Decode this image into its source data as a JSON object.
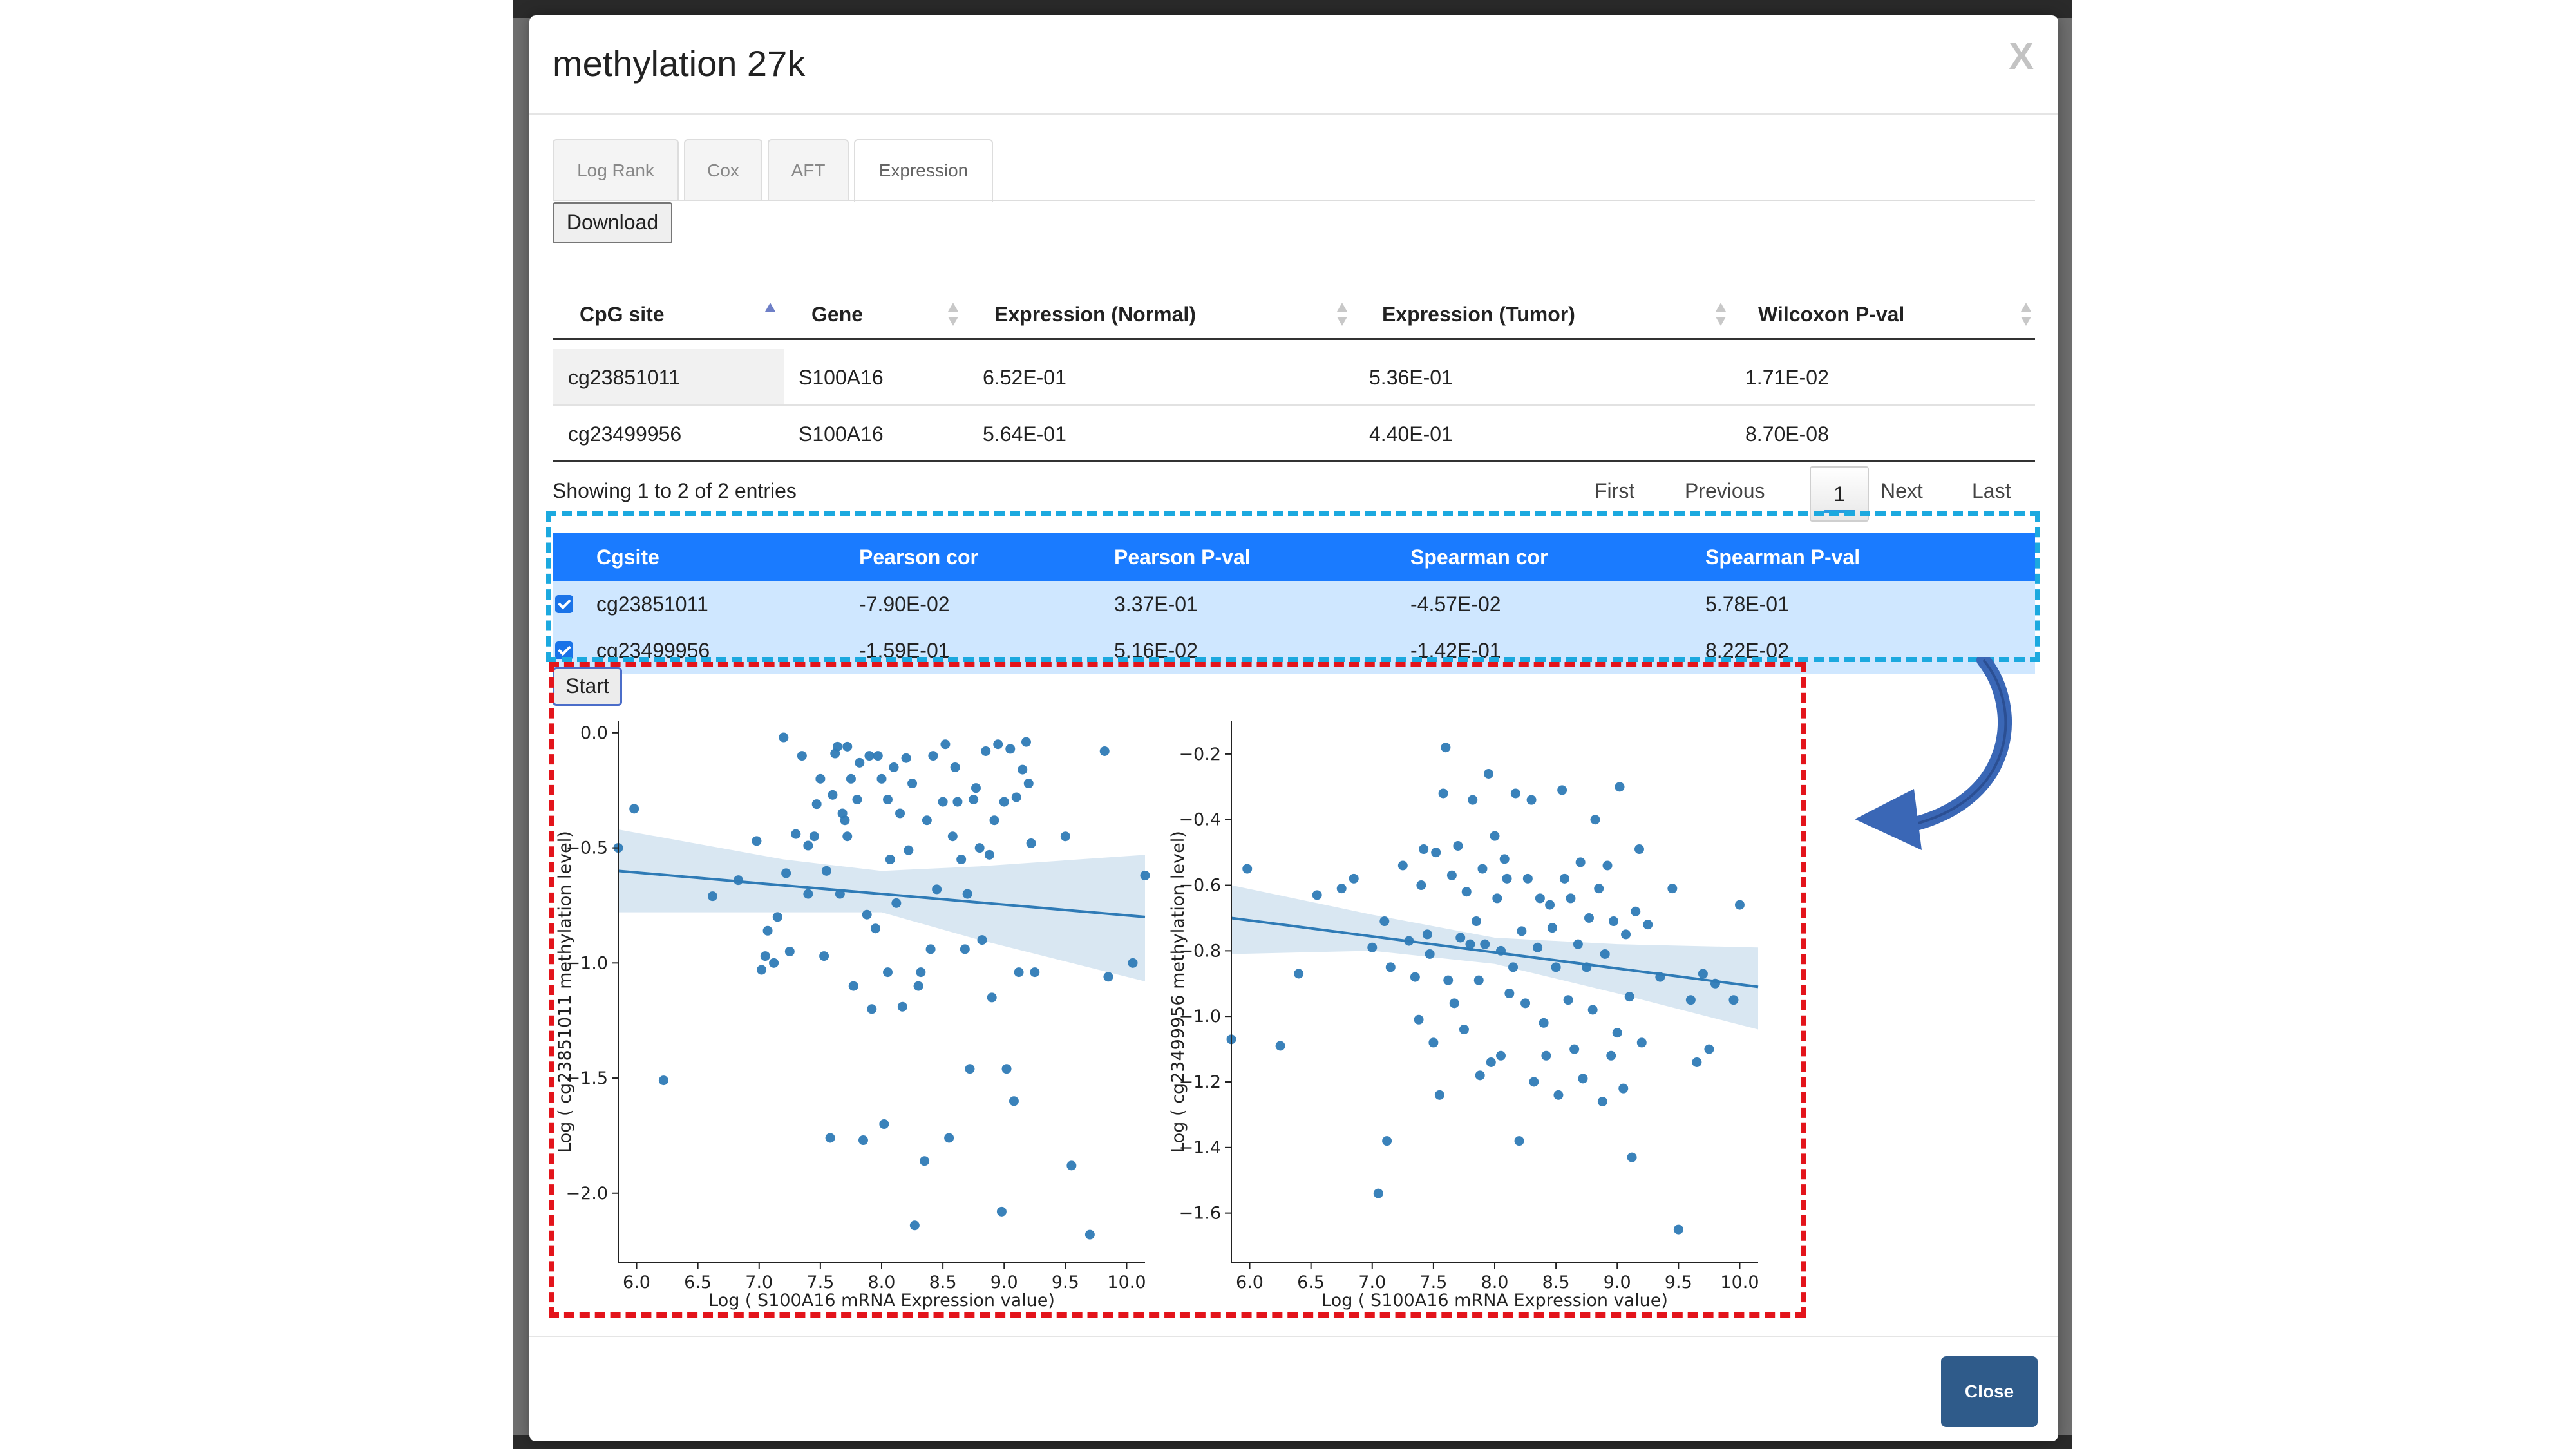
{
  "modal": {
    "title": "methylation 27k",
    "close_x": "X",
    "close_button": "Close"
  },
  "tabs": [
    {
      "label": "Log Rank"
    },
    {
      "label": "Cox"
    },
    {
      "label": "AFT"
    },
    {
      "label": "Expression",
      "active": true
    }
  ],
  "download_label": "Download",
  "table1": {
    "headers": [
      "CpG site",
      "Gene",
      "Expression (Normal)",
      "Expression (Tumor)",
      "Wilcoxon P-val"
    ],
    "rows": [
      [
        "cg23851011",
        "S100A16",
        "6.52E-01",
        "5.36E-01",
        "1.71E-02"
      ],
      [
        "cg23499956",
        "S100A16",
        "5.64E-01",
        "4.40E-01",
        "8.70E-08"
      ]
    ],
    "info": "Showing 1 to 2 of 2 entries",
    "pager": {
      "first": "First",
      "previous": "Previous",
      "current": "1",
      "next": "Next",
      "last": "Last"
    }
  },
  "table2": {
    "headers": [
      "Cgsite",
      "Pearson cor",
      "Pearson P-val",
      "Spearman cor",
      "Spearman P-val"
    ],
    "rows": [
      [
        "cg23851011",
        "-7.90E-02",
        "3.37E-01",
        "-4.57E-02",
        "5.78E-01"
      ],
      [
        "cg23499956",
        "-1.59E-01",
        "5.16E-02",
        "-1.42E-01",
        "8.22E-02"
      ]
    ]
  },
  "start_label": "Start",
  "colors": {
    "accent": "#1a7bff",
    "point": "#2f7bb6",
    "highlight_blue": "#1ca9df",
    "highlight_red": "#e3141b",
    "close_button": "#2f5b8a"
  },
  "chart_data": [
    {
      "type": "scatter",
      "xlabel": "Log ( S100A16 mRNA Expression value)",
      "ylabel": "Log ( cg23851011 methylation level)",
      "xlim": [
        5.85,
        10.15
      ],
      "ylim": [
        -2.3,
        0.05
      ],
      "xticks": [
        "6.0",
        "6.5",
        "7.0",
        "7.5",
        "8.0",
        "8.5",
        "9.0",
        "9.5",
        "10.0"
      ],
      "yticks": [
        "0.0",
        "-0.5",
        "-1.0",
        "-1.5",
        "-2.0"
      ],
      "regression": {
        "x": [
          5.85,
          10.15
        ],
        "y": [
          -0.6,
          -0.8
        ]
      },
      "ci_band": {
        "x": [
          5.85,
          7.2,
          8.0,
          8.8,
          10.15
        ],
        "upper": [
          -0.42,
          -0.55,
          -0.6,
          -0.58,
          -0.53
        ],
        "lower": [
          -0.78,
          -0.78,
          -0.78,
          -0.9,
          -1.08
        ]
      },
      "points": [
        [
          5.85,
          -0.5
        ],
        [
          5.98,
          -0.33
        ],
        [
          6.22,
          -1.51
        ],
        [
          6.62,
          -0.71
        ],
        [
          6.83,
          -0.64
        ],
        [
          6.98,
          -0.47
        ],
        [
          7.02,
          -1.03
        ],
        [
          7.05,
          -0.97
        ],
        [
          7.07,
          -0.86
        ],
        [
          7.12,
          -1.0
        ],
        [
          7.15,
          -0.8
        ],
        [
          7.2,
          -0.02
        ],
        [
          7.22,
          -0.61
        ],
        [
          7.25,
          -0.95
        ],
        [
          7.3,
          -0.44
        ],
        [
          7.35,
          -0.1
        ],
        [
          7.4,
          -0.7
        ],
        [
          7.4,
          -0.49
        ],
        [
          7.45,
          -0.45
        ],
        [
          7.47,
          -0.31
        ],
        [
          7.5,
          -0.2
        ],
        [
          7.53,
          -0.97
        ],
        [
          7.55,
          -0.6
        ],
        [
          7.58,
          -1.76
        ],
        [
          7.6,
          -0.27
        ],
        [
          7.62,
          -0.09
        ],
        [
          7.64,
          -0.06
        ],
        [
          7.66,
          -0.7
        ],
        [
          7.68,
          -0.35
        ],
        [
          7.7,
          -0.38
        ],
        [
          7.72,
          -0.06
        ],
        [
          7.72,
          -0.45
        ],
        [
          7.75,
          -0.2
        ],
        [
          7.77,
          -1.1
        ],
        [
          7.8,
          -0.29
        ],
        [
          7.82,
          -0.13
        ],
        [
          7.85,
          -1.77
        ],
        [
          7.88,
          -0.79
        ],
        [
          7.9,
          -0.1
        ],
        [
          7.92,
          -1.2
        ],
        [
          7.95,
          -0.85
        ],
        [
          7.97,
          -0.1
        ],
        [
          8.0,
          -0.2
        ],
        [
          8.02,
          -1.7
        ],
        [
          8.05,
          -1.04
        ],
        [
          8.05,
          -0.29
        ],
        [
          8.07,
          -0.55
        ],
        [
          8.1,
          -0.15
        ],
        [
          8.12,
          -0.74
        ],
        [
          8.15,
          -0.35
        ],
        [
          8.17,
          -1.19
        ],
        [
          8.2,
          -0.11
        ],
        [
          8.22,
          -0.51
        ],
        [
          8.25,
          -0.22
        ],
        [
          8.27,
          -2.14
        ],
        [
          8.3,
          -1.1
        ],
        [
          8.32,
          -1.04
        ],
        [
          8.35,
          -1.86
        ],
        [
          8.37,
          -0.38
        ],
        [
          8.4,
          -0.94
        ],
        [
          8.42,
          -0.1
        ],
        [
          8.45,
          -0.68
        ],
        [
          8.5,
          -0.3
        ],
        [
          8.52,
          -0.05
        ],
        [
          8.55,
          -1.76
        ],
        [
          8.58,
          -0.45
        ],
        [
          8.6,
          -0.15
        ],
        [
          8.62,
          -0.3
        ],
        [
          8.65,
          -0.55
        ],
        [
          8.68,
          -0.94
        ],
        [
          8.7,
          -0.7
        ],
        [
          8.72,
          -1.46
        ],
        [
          8.75,
          -0.29
        ],
        [
          8.77,
          -0.24
        ],
        [
          8.8,
          -0.5
        ],
        [
          8.82,
          -0.9
        ],
        [
          8.85,
          -0.08
        ],
        [
          8.88,
          -0.53
        ],
        [
          8.9,
          -1.15
        ],
        [
          8.92,
          -0.38
        ],
        [
          8.95,
          -0.05
        ],
        [
          8.98,
          -2.08
        ],
        [
          9.0,
          -0.3
        ],
        [
          9.02,
          -1.46
        ],
        [
          9.05,
          -0.07
        ],
        [
          9.08,
          -1.6
        ],
        [
          9.1,
          -0.28
        ],
        [
          9.12,
          -1.04
        ],
        [
          9.15,
          -0.16
        ],
        [
          9.18,
          -0.04
        ],
        [
          9.2,
          -0.22
        ],
        [
          9.22,
          -0.48
        ],
        [
          9.25,
          -1.04
        ],
        [
          9.5,
          -0.45
        ],
        [
          9.55,
          -1.88
        ],
        [
          9.7,
          -2.18
        ],
        [
          9.82,
          -0.08
        ],
        [
          9.85,
          -1.06
        ],
        [
          10.05,
          -1.0
        ],
        [
          10.15,
          -0.62
        ]
      ]
    },
    {
      "type": "scatter",
      "xlabel": "Log ( S100A16 mRNA Expression value)",
      "ylabel": "Log ( cg23499956 methylation level)",
      "xlim": [
        5.85,
        10.15
      ],
      "ylim": [
        -1.75,
        -0.1
      ],
      "xticks": [
        "6.0",
        "6.5",
        "7.0",
        "7.5",
        "8.0",
        "8.5",
        "9.0",
        "9.5",
        "10.0"
      ],
      "yticks": [
        "-0.2",
        "-0.4",
        "-0.6",
        "-0.8",
        "-1.0",
        "-1.2",
        "-1.4",
        "-1.6"
      ],
      "regression": {
        "x": [
          5.85,
          10.15
        ],
        "y": [
          -0.7,
          -0.91
        ]
      },
      "ci_band": {
        "x": [
          5.85,
          7.0,
          8.0,
          9.0,
          10.15
        ],
        "upper": [
          -0.6,
          -0.69,
          -0.76,
          -0.78,
          -0.79
        ],
        "lower": [
          -0.81,
          -0.8,
          -0.84,
          -0.93,
          -1.04
        ]
      },
      "points": [
        [
          5.85,
          -1.07
        ],
        [
          5.98,
          -0.55
        ],
        [
          6.25,
          -1.09
        ],
        [
          6.4,
          -0.87
        ],
        [
          6.55,
          -0.63
        ],
        [
          6.75,
          -0.61
        ],
        [
          6.85,
          -0.58
        ],
        [
          7.0,
          -0.79
        ],
        [
          7.05,
          -1.54
        ],
        [
          7.1,
          -0.71
        ],
        [
          7.12,
          -1.38
        ],
        [
          7.15,
          -0.85
        ],
        [
          7.25,
          -0.54
        ],
        [
          7.3,
          -0.77
        ],
        [
          7.35,
          -0.88
        ],
        [
          7.38,
          -1.01
        ],
        [
          7.4,
          -0.6
        ],
        [
          7.42,
          -0.49
        ],
        [
          7.45,
          -0.75
        ],
        [
          7.47,
          -0.81
        ],
        [
          7.5,
          -1.08
        ],
        [
          7.52,
          -0.5
        ],
        [
          7.55,
          -1.24
        ],
        [
          7.58,
          -0.32
        ],
        [
          7.6,
          -0.18
        ],
        [
          7.62,
          -0.89
        ],
        [
          7.65,
          -0.57
        ],
        [
          7.67,
          -0.96
        ],
        [
          7.7,
          -0.48
        ],
        [
          7.72,
          -0.76
        ],
        [
          7.75,
          -1.04
        ],
        [
          7.77,
          -0.62
        ],
        [
          7.8,
          -0.78
        ],
        [
          7.82,
          -0.34
        ],
        [
          7.85,
          -0.71
        ],
        [
          7.87,
          -0.89
        ],
        [
          7.88,
          -1.18
        ],
        [
          7.9,
          -0.55
        ],
        [
          7.92,
          -0.78
        ],
        [
          7.95,
          -0.26
        ],
        [
          7.97,
          -1.14
        ],
        [
          8.0,
          -0.45
        ],
        [
          8.02,
          -0.64
        ],
        [
          8.05,
          -0.8
        ],
        [
          8.05,
          -1.12
        ],
        [
          8.08,
          -0.52
        ],
        [
          8.1,
          -0.58
        ],
        [
          8.12,
          -0.93
        ],
        [
          8.15,
          -0.85
        ],
        [
          8.17,
          -0.32
        ],
        [
          8.2,
          -1.38
        ],
        [
          8.22,
          -0.74
        ],
        [
          8.25,
          -0.96
        ],
        [
          8.27,
          -0.58
        ],
        [
          8.3,
          -0.34
        ],
        [
          8.32,
          -1.2
        ],
        [
          8.35,
          -0.79
        ],
        [
          8.37,
          -0.64
        ],
        [
          8.4,
          -1.02
        ],
        [
          8.42,
          -1.12
        ],
        [
          8.45,
          -0.66
        ],
        [
          8.47,
          -0.73
        ],
        [
          8.5,
          -0.85
        ],
        [
          8.52,
          -1.24
        ],
        [
          8.55,
          -0.31
        ],
        [
          8.57,
          -0.58
        ],
        [
          8.6,
          -0.95
        ],
        [
          8.62,
          -0.64
        ],
        [
          8.65,
          -1.1
        ],
        [
          8.68,
          -0.78
        ],
        [
          8.7,
          -0.53
        ],
        [
          8.72,
          -1.19
        ],
        [
          8.75,
          -0.85
        ],
        [
          8.77,
          -0.7
        ],
        [
          8.8,
          -0.98
        ],
        [
          8.82,
          -0.4
        ],
        [
          8.85,
          -0.61
        ],
        [
          8.88,
          -1.26
        ],
        [
          8.9,
          -0.81
        ],
        [
          8.92,
          -0.54
        ],
        [
          8.95,
          -1.12
        ],
        [
          8.97,
          -0.71
        ],
        [
          9.0,
          -1.05
        ],
        [
          9.02,
          -0.3
        ],
        [
          9.05,
          -1.22
        ],
        [
          9.07,
          -0.75
        ],
        [
          9.1,
          -0.94
        ],
        [
          9.12,
          -1.43
        ],
        [
          9.15,
          -0.68
        ],
        [
          9.18,
          -0.49
        ],
        [
          9.2,
          -1.08
        ],
        [
          9.25,
          -0.72
        ],
        [
          9.35,
          -0.88
        ],
        [
          9.45,
          -0.61
        ],
        [
          9.5,
          -1.65
        ],
        [
          9.6,
          -0.95
        ],
        [
          9.65,
          -1.14
        ],
        [
          9.7,
          -0.87
        ],
        [
          9.75,
          -1.1
        ],
        [
          9.8,
          -0.9
        ],
        [
          9.95,
          -0.95
        ],
        [
          10.0,
          -0.66
        ]
      ]
    }
  ]
}
